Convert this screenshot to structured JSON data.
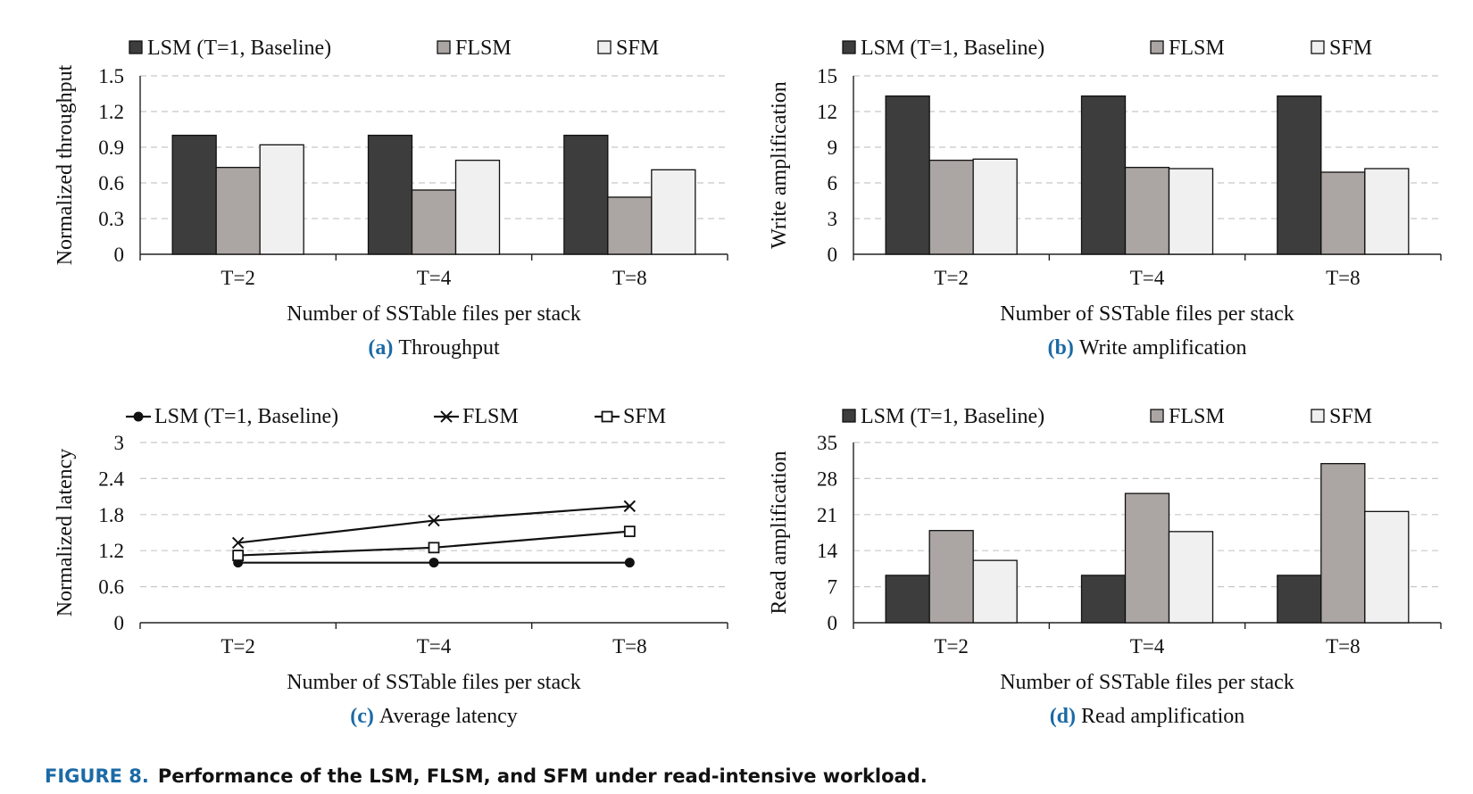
{
  "figure": {
    "label": "FIGURE 8.",
    "caption": "Performance of the LSM, FLSM, and SFM under read-intensive workload."
  },
  "colors": {
    "lsm": "#3d3d3d",
    "flsm": "#aba6a4",
    "sfm": "#f0f0f0",
    "caption_blue": "#1b6aa6",
    "grid": "#c8c8c8"
  },
  "chart_data": [
    {
      "type": "bar",
      "sub_label": "(a)",
      "sub_title": "Throughput",
      "ylabel": "Normalized throughput",
      "xlabel": "Number of SSTable files per stack",
      "categories": [
        "T=2",
        "T=4",
        "T=8"
      ],
      "ylim": [
        0,
        1.5
      ],
      "yticks": [
        "0",
        "0.3",
        "0.6",
        "0.9",
        "1.2",
        "1.5"
      ],
      "grid": true,
      "legend_position": "top",
      "series": [
        {
          "name": "LSM (T=1, Baseline)",
          "values": [
            1.0,
            1.0,
            1.0
          ]
        },
        {
          "name": "FLSM",
          "values": [
            0.73,
            0.54,
            0.48
          ]
        },
        {
          "name": "SFM",
          "values": [
            0.92,
            0.79,
            0.71
          ]
        }
      ]
    },
    {
      "type": "bar",
      "sub_label": "(b)",
      "sub_title": "Write amplification",
      "ylabel": "Write amplification",
      "xlabel": "Number of SSTable files per stack",
      "categories": [
        "T=2",
        "T=4",
        "T=8"
      ],
      "ylim": [
        0,
        15
      ],
      "yticks": [
        "0",
        "3",
        "6",
        "9",
        "12",
        "15"
      ],
      "grid": true,
      "legend_position": "top",
      "series": [
        {
          "name": "LSM (T=1, Baseline)",
          "values": [
            13.3,
            13.3,
            13.3
          ]
        },
        {
          "name": "FLSM",
          "values": [
            7.9,
            7.3,
            6.9
          ]
        },
        {
          "name": "SFM",
          "values": [
            8.0,
            7.2,
            7.2
          ]
        }
      ]
    },
    {
      "type": "line",
      "sub_label": "(c)",
      "sub_title": "Average latency",
      "ylabel": "Normalized latency",
      "xlabel": "Number of SSTable files per stack",
      "categories": [
        "T=2",
        "T=4",
        "T=8"
      ],
      "ylim": [
        0,
        3
      ],
      "yticks": [
        "0",
        "0.6",
        "1.2",
        "1.8",
        "2.4",
        "3"
      ],
      "grid": true,
      "legend_position": "top",
      "series": [
        {
          "name": "LSM (T=1, Baseline)",
          "marker": "circle",
          "values": [
            1.0,
            1.0,
            1.0
          ]
        },
        {
          "name": "FLSM",
          "marker": "x",
          "values": [
            1.33,
            1.7,
            1.94
          ]
        },
        {
          "name": "SFM",
          "marker": "square",
          "values": [
            1.12,
            1.25,
            1.52
          ]
        }
      ]
    },
    {
      "type": "bar",
      "sub_label": "(d)",
      "sub_title": "Read amplification",
      "ylabel": "Read amplification",
      "xlabel": "Number of SSTable files per stack",
      "categories": [
        "T=2",
        "T=4",
        "T=8"
      ],
      "ylim": [
        0,
        35
      ],
      "yticks": [
        "0",
        "7",
        "14",
        "21",
        "28",
        "35"
      ],
      "grid": true,
      "legend_position": "top",
      "series": [
        {
          "name": "LSM (T=1, Baseline)",
          "values": [
            9.2,
            9.2,
            9.2
          ]
        },
        {
          "name": "FLSM",
          "values": [
            17.9,
            25.1,
            30.9
          ]
        },
        {
          "name": "SFM",
          "values": [
            12.1,
            17.7,
            21.6
          ]
        }
      ]
    }
  ]
}
